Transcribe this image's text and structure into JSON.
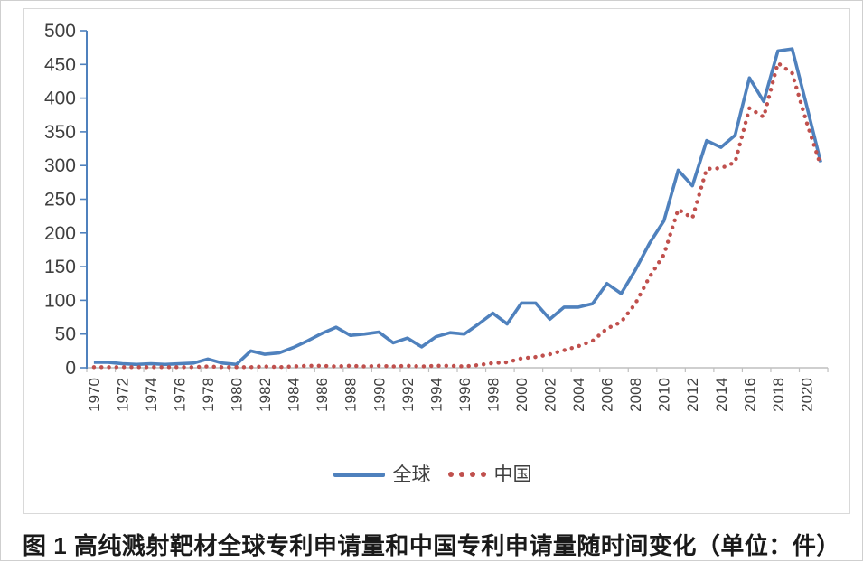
{
  "figure": {
    "caption": "图 1  高纯溅射靶材全球专利申请量和中国专利申请量随时间变化（单位：件）"
  },
  "legend": {
    "series1_label": "全球",
    "series2_label": "中国"
  },
  "colors": {
    "global_line": "#4F81BD",
    "china_line": "#C0504D",
    "axis_text": "#3f3f3f",
    "x_axis_line": "#bfbfbf",
    "frame_border": "#d9d9d9",
    "caption_text": "#1a1a1a"
  },
  "chart_data": {
    "type": "line",
    "title": "",
    "xlabel": "",
    "ylabel": "",
    "ylim": [
      0,
      500
    ],
    "y_ticks": [
      0,
      50,
      100,
      150,
      200,
      250,
      300,
      350,
      400,
      450,
      500
    ],
    "grid": false,
    "legend_position": "bottom",
    "x": [
      1970,
      1971,
      1972,
      1973,
      1974,
      1975,
      1976,
      1977,
      1978,
      1979,
      1980,
      1981,
      1982,
      1983,
      1984,
      1985,
      1986,
      1987,
      1988,
      1989,
      1990,
      1991,
      1992,
      1993,
      1994,
      1995,
      1996,
      1997,
      1998,
      1999,
      2000,
      2001,
      2002,
      2003,
      2004,
      2005,
      2006,
      2007,
      2008,
      2009,
      2010,
      2011,
      2012,
      2013,
      2014,
      2015,
      2016,
      2017,
      2018,
      2019,
      2020,
      2021
    ],
    "x_tick_labels": [
      "1970",
      "1972",
      "1974",
      "1976",
      "1978",
      "1980",
      "1982",
      "1984",
      "1986",
      "1988",
      "1990",
      "1992",
      "1994",
      "1996",
      "1998",
      "2000",
      "2002",
      "2004",
      "2006",
      "2008",
      "2010",
      "2012",
      "2014",
      "2016",
      "2018",
      "2020"
    ],
    "series": [
      {
        "name": "全球",
        "style": "solid",
        "color": "#4F81BD",
        "values": [
          8,
          8,
          6,
          5,
          6,
          5,
          6,
          7,
          13,
          7,
          5,
          25,
          20,
          22,
          30,
          40,
          51,
          60,
          48,
          50,
          53,
          37,
          44,
          31,
          46,
          52,
          50,
          65,
          81,
          65,
          96,
          96,
          72,
          90,
          90,
          95,
          125,
          110,
          145,
          185,
          218,
          293,
          270,
          337,
          327,
          345,
          430,
          395,
          470,
          473,
          390,
          305
        ]
      },
      {
        "name": "中国",
        "style": "dotted",
        "color": "#C0504D",
        "values": [
          1,
          1,
          1,
          1,
          1,
          1,
          1,
          1,
          2,
          1,
          1,
          1,
          2,
          1,
          2,
          3,
          3,
          2,
          3,
          2,
          3,
          2,
          3,
          2,
          3,
          3,
          2,
          4,
          7,
          8,
          14,
          16,
          20,
          26,
          32,
          40,
          58,
          68,
          95,
          135,
          168,
          235,
          222,
          295,
          296,
          305,
          385,
          372,
          452,
          437,
          365,
          300
        ]
      }
    ]
  }
}
